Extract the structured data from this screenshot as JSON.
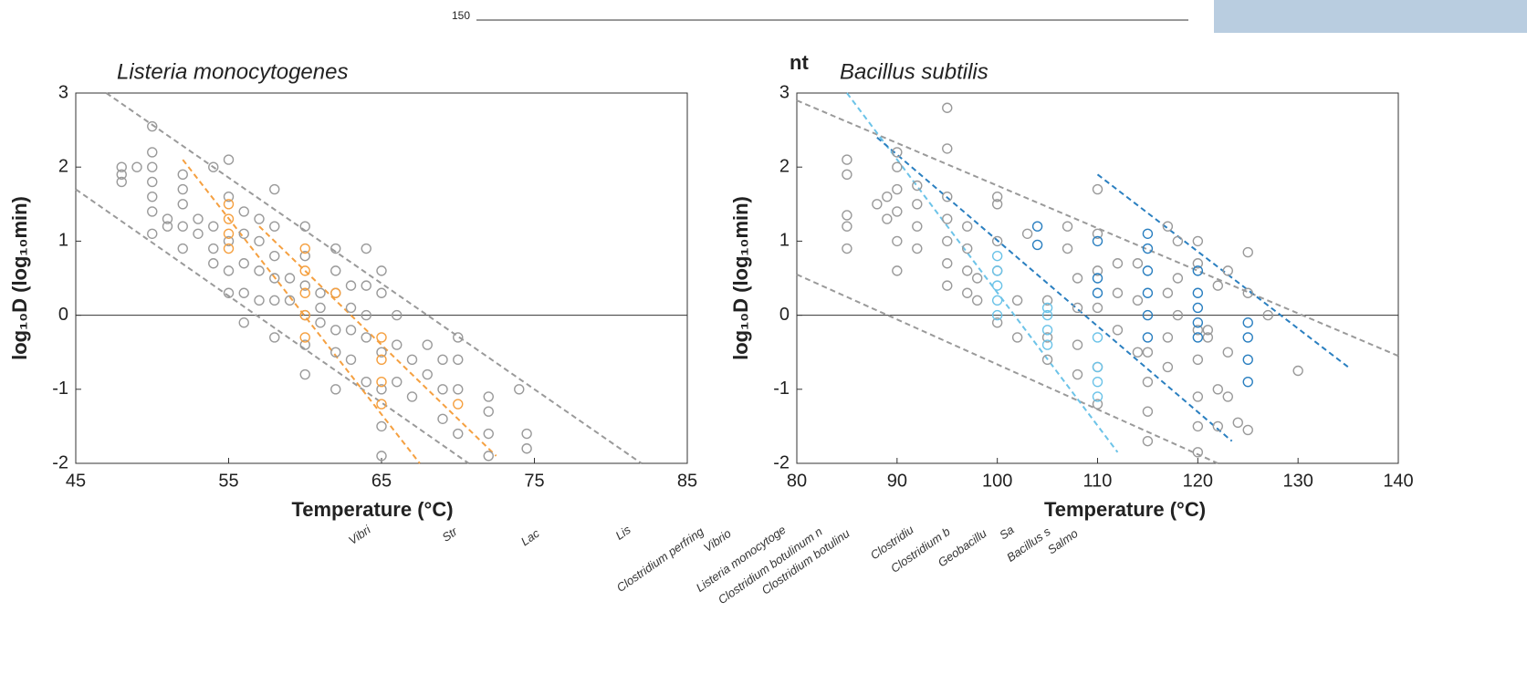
{
  "chart_data": [
    {
      "type": "scatter",
      "title": "Listeria monocytogenes",
      "xlabel": "Temperature (°C)",
      "ylabel": "log₁₀D (log₁₀min)",
      "xlim": [
        45,
        85
      ],
      "ylim": [
        -2,
        3
      ],
      "xticks": [
        45,
        55,
        65,
        75,
        85
      ],
      "yticks": [
        -2,
        -1,
        0,
        1,
        2,
        3
      ],
      "hline": 0,
      "series": [
        {
          "color": "#9a9a9a",
          "x": [
            48,
            48,
            48,
            49,
            50,
            50,
            50,
            50,
            50,
            50,
            50,
            51,
            51,
            52,
            52,
            52,
            52,
            52,
            53,
            53,
            54,
            54,
            54,
            54,
            55,
            55,
            55,
            55,
            55,
            56,
            56,
            56,
            56,
            56,
            57,
            57,
            57,
            57,
            58,
            58,
            58,
            58,
            58,
            58,
            59,
            59,
            60,
            60,
            60,
            60,
            60,
            60,
            61,
            61,
            61,
            62,
            62,
            62,
            62,
            62,
            62,
            63,
            63,
            63,
            63,
            64,
            64,
            64,
            64,
            64,
            65,
            65,
            65,
            65,
            65,
            65,
            66,
            66,
            66,
            67,
            67,
            68,
            68,
            69,
            69,
            69,
            70,
            70,
            70,
            70,
            72,
            72,
            72,
            72,
            74,
            74.5,
            74.5
          ],
          "y": [
            1.8,
            1.9,
            2.0,
            2.0,
            1.1,
            1.4,
            1.6,
            1.8,
            2.0,
            2.2,
            2.55,
            1.3,
            1.2,
            0.9,
            1.2,
            1.5,
            1.7,
            1.9,
            1.3,
            1.1,
            0.7,
            0.9,
            1.2,
            2.0,
            0.3,
            0.6,
            1.0,
            1.6,
            2.1,
            -0.1,
            0.3,
            0.7,
            1.1,
            1.4,
            0.2,
            0.6,
            1.0,
            1.3,
            -0.3,
            0.2,
            0.5,
            0.8,
            1.2,
            1.7,
            0.2,
            0.5,
            -0.8,
            -0.4,
            0,
            0.4,
            0.8,
            1.2,
            0.1,
            0.3,
            -0.1,
            -1.0,
            -0.5,
            -0.2,
            0.3,
            0.6,
            0.9,
            -0.6,
            -0.2,
            0.1,
            0.4,
            -0.9,
            -0.3,
            0.0,
            0.4,
            0.9,
            -1.9,
            -1.5,
            -1.0,
            -0.5,
            0.3,
            0.6,
            -0.9,
            -0.4,
            0,
            -1.1,
            -0.6,
            -0.8,
            -0.4,
            -1.4,
            -1.0,
            -0.6,
            -1.6,
            -1.0,
            -0.6,
            -0.3,
            -1.9,
            -1.6,
            -1.3,
            -1.1,
            -1.0,
            -1.6,
            -1.8
          ]
        },
        {
          "color": "#f5a040",
          "x": [
            55,
            55,
            55,
            55,
            60,
            60,
            60,
            60,
            60,
            62,
            65,
            65,
            65,
            65,
            70
          ],
          "y": [
            0.9,
            1.1,
            1.3,
            1.5,
            -0.3,
            0,
            0.3,
            0.6,
            0.9,
            0.3,
            -1.2,
            -0.9,
            -0.6,
            -0.3,
            -1.2
          ]
        }
      ],
      "lines": [
        {
          "color": "#9a9a9a",
          "x": [
            47,
            82
          ],
          "y": [
            3,
            -2
          ]
        },
        {
          "color": "#9a9a9a",
          "x": [
            45,
            70.7
          ],
          "y": [
            1.7,
            -2
          ]
        },
        {
          "color": "#f5a040",
          "x": [
            52,
            67.5
          ],
          "y": [
            2.1,
            -2
          ]
        },
        {
          "color": "#f5a040",
          "x": [
            57,
            72.5
          ],
          "y": [
            1.2,
            -1.9
          ]
        }
      ]
    },
    {
      "type": "scatter",
      "title": "Bacillus subtilis",
      "xlabel": "Temperature (°C)",
      "ylabel": "log₁₀D (log₁₀min)",
      "xlim": [
        80,
        140
      ],
      "ylim": [
        -2,
        3
      ],
      "xticks": [
        80,
        90,
        100,
        110,
        120,
        130,
        140
      ],
      "yticks": [
        -2,
        -1,
        0,
        1,
        2,
        3
      ],
      "hline": 0,
      "series": [
        {
          "color": "#9a9a9a",
          "x": [
            85,
            85,
            85,
            85,
            85,
            88,
            89,
            89,
            90,
            90,
            90,
            90,
            90,
            90,
            92,
            92,
            92,
            92,
            95,
            95,
            95,
            95,
            95,
            95,
            95,
            97,
            97,
            97,
            97,
            98,
            98,
            100,
            100,
            100,
            100,
            100,
            102,
            102,
            103,
            105,
            105,
            105,
            107,
            107,
            108,
            108,
            108,
            108,
            110,
            110,
            110,
            110,
            110,
            110,
            112,
            112,
            112,
            114,
            114,
            114,
            115,
            115,
            115,
            115,
            117,
            117,
            117,
            117,
            118,
            118,
            118,
            120,
            120,
            120,
            120,
            120,
            120,
            120,
            121,
            121,
            122,
            122,
            122,
            123,
            123,
            123,
            124,
            125,
            125,
            125,
            127,
            130
          ],
          "y": [
            0.9,
            1.2,
            1.35,
            1.9,
            2.1,
            1.5,
            1.6,
            1.3,
            0.6,
            1.0,
            1.4,
            1.7,
            2.0,
            2.2,
            0.9,
            1.2,
            1.5,
            1.75,
            0.4,
            0.7,
            1.0,
            1.3,
            1.6,
            2.25,
            2.8,
            0.3,
            0.6,
            0.9,
            1.2,
            0.2,
            0.5,
            -0.1,
            0.6,
            1.0,
            1.5,
            1.6,
            -0.3,
            0.2,
            1.1,
            -0.6,
            -0.3,
            0.2,
            0.9,
            1.2,
            -0.8,
            -0.4,
            0.1,
            0.5,
            -1.2,
            -0.7,
            0.1,
            0.6,
            1.1,
            1.7,
            -0.2,
            0.3,
            0.7,
            -0.5,
            0.2,
            0.7,
            -1.7,
            -1.3,
            -0.9,
            -0.5,
            -0.7,
            -0.3,
            0.3,
            1.2,
            0.0,
            0.5,
            1.0,
            -1.85,
            -1.5,
            -1.1,
            -0.6,
            -0.2,
            0.7,
            1.0,
            -0.3,
            -0.2,
            -1.5,
            -1.0,
            0.4,
            -1.1,
            -0.5,
            0.6,
            -1.45,
            -1.55,
            0.3,
            0.85,
            0.0,
            -0.75
          ]
        },
        {
          "color": "#6cc3e8",
          "x": [
            100,
            100,
            100,
            100,
            100,
            105,
            105,
            105,
            105,
            110,
            110,
            110,
            110
          ],
          "y": [
            0.0,
            0.2,
            0.4,
            0.6,
            0.8,
            -0.4,
            -0.2,
            0,
            0.1,
            -1.1,
            -0.9,
            -0.7,
            -0.3
          ]
        },
        {
          "color": "#2a7fc0",
          "x": [
            104,
            104,
            110,
            110,
            110,
            115,
            115,
            115,
            115,
            115,
            115,
            120,
            120,
            120,
            120,
            120,
            125,
            125,
            125,
            125
          ],
          "y": [
            0.95,
            1.2,
            0.3,
            0.5,
            1.0,
            -0.3,
            0,
            0.3,
            0.6,
            0.9,
            1.1,
            -0.3,
            -0.1,
            0.1,
            0.3,
            0.6,
            -0.9,
            -0.6,
            -0.3,
            -0.1
          ]
        }
      ],
      "lines": [
        {
          "color": "#9a9a9a",
          "x": [
            80,
            140
          ],
          "y": [
            2.9,
            -0.55
          ]
        },
        {
          "color": "#9a9a9a",
          "x": [
            80,
            122
          ],
          "y": [
            0.55,
            -2
          ]
        },
        {
          "color": "#6cc3e8",
          "x": [
            85,
            112
          ],
          "y": [
            3,
            -1.85
          ]
        },
        {
          "color": "#2a7fc0",
          "x": [
            88,
            123.4
          ],
          "y": [
            2.4,
            -1.7
          ]
        },
        {
          "color": "#2a7fc0",
          "x": [
            110,
            135
          ],
          "y": [
            1.9,
            -0.7
          ]
        }
      ]
    }
  ],
  "background": {
    "tick_label": "150",
    "fragment": "nt",
    "rotated_labels": [
      "Vibri",
      "Str",
      "Lac",
      "Lis",
      "Clostridium perfring",
      "Vibrio",
      "Listeria monocytoge",
      "Clostridium botulinum n",
      "Clostridium botulinu",
      "Clostridiu",
      "Clostridium b",
      "Geobacillu",
      "Sa",
      "Bacillus s",
      "Salmo"
    ]
  }
}
